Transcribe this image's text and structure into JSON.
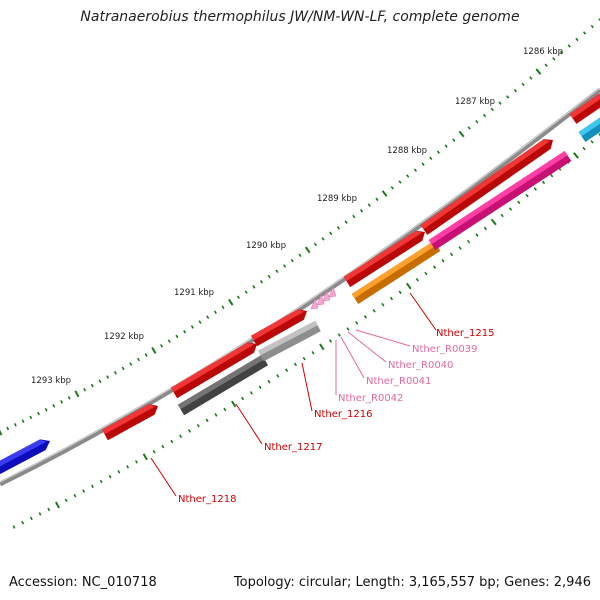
{
  "title": "Natranaerobius thermophilus JW/NM-WN-LF, complete genome",
  "footer": {
    "accession": "Accession: NC_010718",
    "summary": "Topology: circular; Length: 3,165,557 bp; Genes: 2,946"
  },
  "colors": {
    "backbone": "#8a8a8a",
    "tick": "#1a7a1a",
    "gene_label": "#cc0000",
    "rna_label": "#e06aa0"
  },
  "scale_labels": [
    "1286 kbp",
    "1287 kbp",
    "1288 kbp",
    "1289 kbp",
    "1290 kbp",
    "1291 kbp",
    "1292 kbp",
    "1293 kbp"
  ],
  "features": [
    {
      "name": "blue-feature",
      "color": "#1010ee",
      "kind": "arrow"
    },
    {
      "name": "Nther_1218",
      "color": "#ee0a0a",
      "kind": "arrow"
    },
    {
      "name": "Nther_1217",
      "color": "#ee0a0a",
      "kind": "arrow"
    },
    {
      "name": "Nther_1217-partner",
      "color": "#555555",
      "kind": "bar"
    },
    {
      "name": "Nther_1216",
      "color": "#ee0a0a",
      "kind": "arrow"
    },
    {
      "name": "Nther_1216-partner",
      "color": "#b5b5b5",
      "kind": "bar"
    },
    {
      "name": "Nther_1215",
      "color": "#ee0a0a",
      "kind": "arrow"
    },
    {
      "name": "Nther_1215-partner",
      "color": "#ff8c00",
      "kind": "bar"
    },
    {
      "name": "red-feature-upper",
      "color": "#ee0a0a",
      "kind": "arrow"
    },
    {
      "name": "magenta-feature",
      "color": "#ff1493",
      "kind": "bar"
    },
    {
      "name": "red-feature-top",
      "color": "#ee0a0a",
      "kind": "arrow"
    },
    {
      "name": "cyan-feature",
      "color": "#18b8ee",
      "kind": "bar"
    }
  ],
  "labels": [
    {
      "text": "Nther_1215",
      "type": "gene"
    },
    {
      "text": "Nther_R0039",
      "type": "rna"
    },
    {
      "text": "Nther_R0040",
      "type": "rna"
    },
    {
      "text": "Nther_R0041",
      "type": "rna"
    },
    {
      "text": "Nther_R0042",
      "type": "rna"
    },
    {
      "text": "Nther_1216",
      "type": "gene"
    },
    {
      "text": "Nther_1217",
      "type": "gene"
    },
    {
      "text": "Nther_1218",
      "type": "gene"
    }
  ]
}
